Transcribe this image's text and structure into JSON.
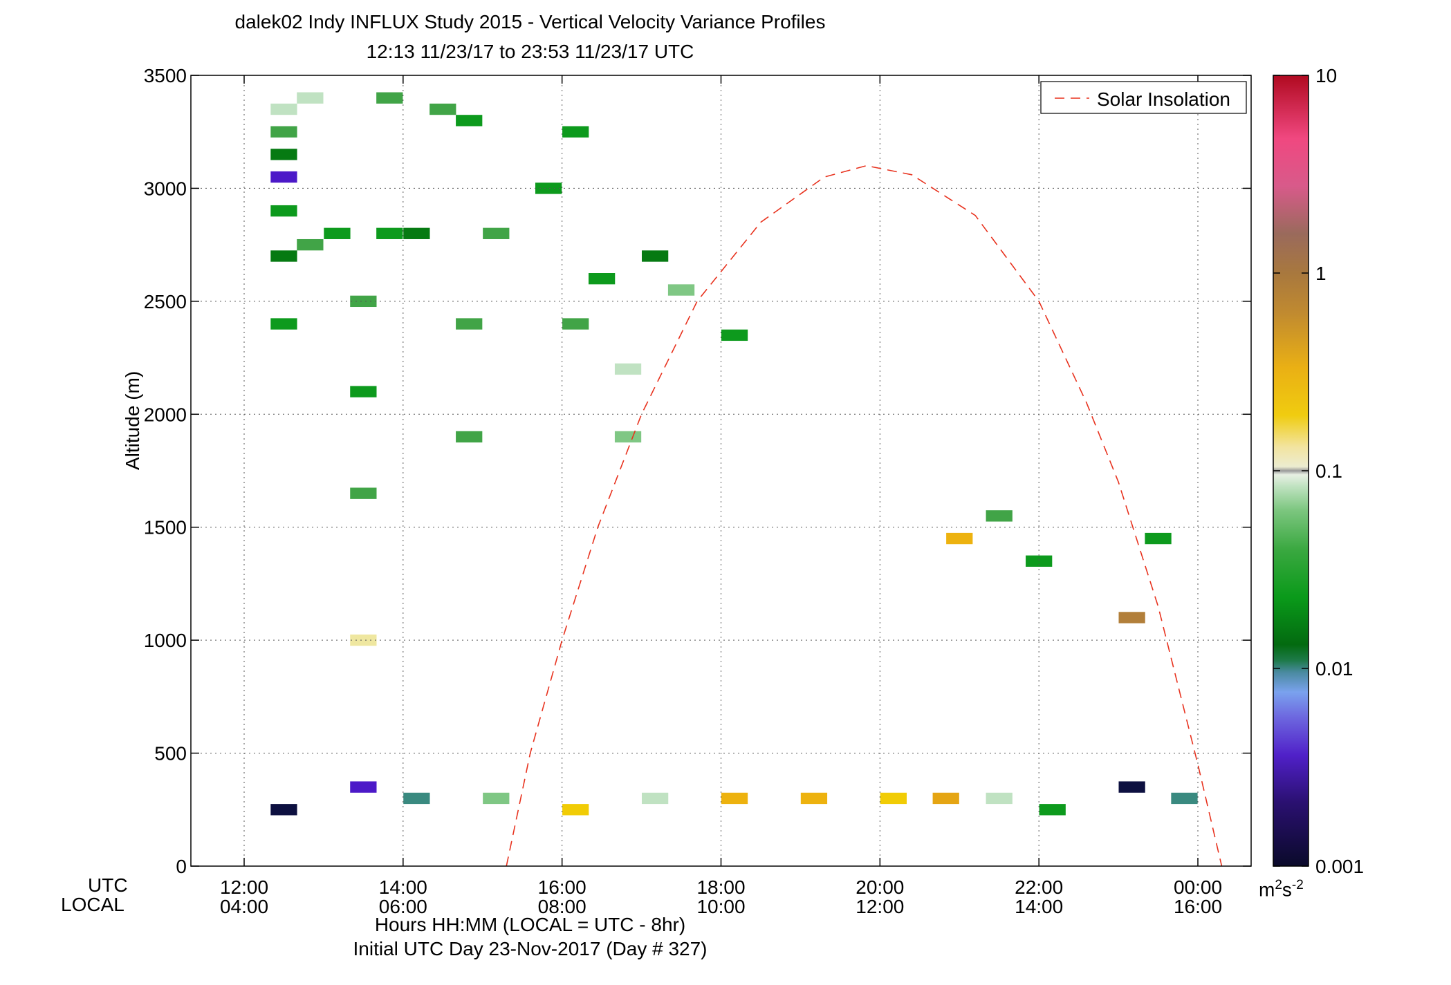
{
  "chart_data": {
    "type": "heatmap",
    "title": "dalek02 Indy INFLUX Study 2015 - Vertical Velocity Variance Profiles",
    "subtitle": "12:13 11/23/17 to 23:53 11/23/17  UTC",
    "ylabel": "Altitude (m)",
    "xlabel": "Hours HH:MM  (LOCAL = UTC - 8hr)",
    "xlabel2": "Initial UTC Day 23-Nov-2017 (Day # 327)",
    "x_row_labels": [
      "UTC",
      "LOCAL"
    ],
    "x_range_hours_utc": [
      11.33,
      24.67
    ],
    "ylim": [
      0,
      3500
    ],
    "grid": true,
    "x_ticks": [
      {
        "utc": "12:00",
        "local": "04:00",
        "h": 12
      },
      {
        "utc": "14:00",
        "local": "06:00",
        "h": 14
      },
      {
        "utc": "16:00",
        "local": "08:00",
        "h": 16
      },
      {
        "utc": "18:00",
        "local": "10:00",
        "h": 18
      },
      {
        "utc": "20:00",
        "local": "12:00",
        "h": 20
      },
      {
        "utc": "22:00",
        "local": "14:00",
        "h": 22
      },
      {
        "utc": "00:00",
        "local": "16:00",
        "h": 24
      }
    ],
    "y_ticks": [
      0,
      500,
      1000,
      1500,
      2000,
      2500,
      3000,
      3500
    ],
    "colorbar": {
      "scale": "log",
      "range": [
        0.001,
        10
      ],
      "ticks": [
        "0.001",
        "0.01",
        "0.1",
        "1",
        "10"
      ],
      "units": "m²s⁻²",
      "units_base": "m",
      "units_sup1": "2",
      "units_mid": "s",
      "units_sup2": "-2"
    },
    "legend": {
      "position": "top-right",
      "entries": [
        "Solar Insolation"
      ]
    },
    "solar_insolation_curve": {
      "style": "dashed red",
      "peak_altitude_axis": 3100,
      "peak_time_utc": 19.83,
      "start_time_utc": 15.3,
      "end_time_utc": 24.3,
      "points": [
        [
          15.3,
          0
        ],
        [
          15.6,
          500
        ],
        [
          16.0,
          1000
        ],
        [
          16.45,
          1500
        ],
        [
          17.0,
          2000
        ],
        [
          17.7,
          2500
        ],
        [
          18.5,
          2850
        ],
        [
          19.3,
          3050
        ],
        [
          19.83,
          3100
        ],
        [
          20.4,
          3060
        ],
        [
          21.2,
          2880
        ],
        [
          22.0,
          2500
        ],
        [
          22.6,
          2050
        ],
        [
          23.0,
          1700
        ],
        [
          23.5,
          1150
        ],
        [
          24.0,
          450
        ],
        [
          24.3,
          0
        ]
      ]
    },
    "colors": {
      "dark_navy": "#0d1040",
      "purple": "#4c19c8",
      "blue": "#6b8ee8",
      "teal": "#3a8a80",
      "dark_green": "#067a12",
      "green": "#0d9a1d",
      "mid_green": "#41a447",
      "light_green": "#7fc784",
      "pale_green": "#c0e2c2",
      "off_white": "#eeeeda",
      "grey": "#a7a7a7",
      "pale_yellow": "#efe7a0",
      "yellow": "#f1cc05",
      "gold": "#edb20f",
      "orange": "#e5a513",
      "brown": "#b27f3a",
      "solar_line": "#e8321e"
    },
    "bins": {
      "time_step_hours": 0.333,
      "altitude_step_m": 50
    },
    "cells": [
      {
        "x": 12.5,
        "y": 3350,
        "c": "pale_green"
      },
      {
        "x": 12.5,
        "y": 3250,
        "c": "mid_green"
      },
      {
        "x": 12.5,
        "y": 3150,
        "c": "dark_green"
      },
      {
        "x": 12.5,
        "y": 3050,
        "c": "purple"
      },
      {
        "x": 12.5,
        "y": 2900,
        "c": "green"
      },
      {
        "x": 12.5,
        "y": 2700,
        "c": "dark_green"
      },
      {
        "x": 12.5,
        "y": 2400,
        "c": "green"
      },
      {
        "x": 12.83,
        "y": 3400,
        "c": "pale_green"
      },
      {
        "x": 12.83,
        "y": 2750,
        "c": "mid_green"
      },
      {
        "x": 13.17,
        "y": 2800,
        "c": "green"
      },
      {
        "x": 13.5,
        "y": 2500,
        "c": "mid_green"
      },
      {
        "x": 13.5,
        "y": 2100,
        "c": "green"
      },
      {
        "x": 13.5,
        "y": 1650,
        "c": "mid_green"
      },
      {
        "x": 13.5,
        "y": 1000,
        "c": "pale_yellow"
      },
      {
        "x": 13.83,
        "y": 3400,
        "c": "mid_green"
      },
      {
        "x": 13.83,
        "y": 2800,
        "c": "green"
      },
      {
        "x": 14.17,
        "y": 2800,
        "c": "dark_green"
      },
      {
        "x": 14.5,
        "y": 3350,
        "c": "mid_green"
      },
      {
        "x": 14.83,
        "y": 3300,
        "c": "green"
      },
      {
        "x": 14.83,
        "y": 2400,
        "c": "mid_green"
      },
      {
        "x": 14.83,
        "y": 1900,
        "c": "mid_green"
      },
      {
        "x": 15.17,
        "y": 2800,
        "c": "mid_green"
      },
      {
        "x": 15.83,
        "y": 3000,
        "c": "green"
      },
      {
        "x": 16.17,
        "y": 3250,
        "c": "green"
      },
      {
        "x": 16.17,
        "y": 2400,
        "c": "mid_green"
      },
      {
        "x": 16.5,
        "y": 2600,
        "c": "green"
      },
      {
        "x": 16.83,
        "y": 2200,
        "c": "pale_green"
      },
      {
        "x": 16.83,
        "y": 1900,
        "c": "light_green"
      },
      {
        "x": 17.17,
        "y": 2700,
        "c": "dark_green"
      },
      {
        "x": 17.5,
        "y": 2550,
        "c": "light_green"
      },
      {
        "x": 18.17,
        "y": 2350,
        "c": "green"
      },
      {
        "x": 21.0,
        "y": 1450,
        "c": "gold"
      },
      {
        "x": 21.5,
        "y": 1550,
        "c": "mid_green"
      },
      {
        "x": 22.0,
        "y": 1350,
        "c": "green"
      },
      {
        "x": 23.17,
        "y": 1100,
        "c": "brown"
      },
      {
        "x": 23.5,
        "y": 1450,
        "c": "green"
      },
      {
        "x": 12.5,
        "y": 250,
        "c": "dark_navy"
      },
      {
        "x": 13.5,
        "y": 350,
        "c": "purple"
      },
      {
        "x": 14.17,
        "y": 300,
        "c": "teal"
      },
      {
        "x": 15.17,
        "y": 300,
        "c": "light_green"
      },
      {
        "x": 16.17,
        "y": 250,
        "c": "yellow"
      },
      {
        "x": 17.17,
        "y": 300,
        "c": "pale_green"
      },
      {
        "x": 18.17,
        "y": 300,
        "c": "gold"
      },
      {
        "x": 19.17,
        "y": 300,
        "c": "gold"
      },
      {
        "x": 20.17,
        "y": 300,
        "c": "yellow"
      },
      {
        "x": 20.83,
        "y": 300,
        "c": "orange"
      },
      {
        "x": 21.5,
        "y": 300,
        "c": "pale_green"
      },
      {
        "x": 22.17,
        "y": 250,
        "c": "green"
      },
      {
        "x": 23.17,
        "y": 350,
        "c": "dark_navy"
      },
      {
        "x": 23.83,
        "y": 300,
        "c": "teal"
      }
    ]
  }
}
